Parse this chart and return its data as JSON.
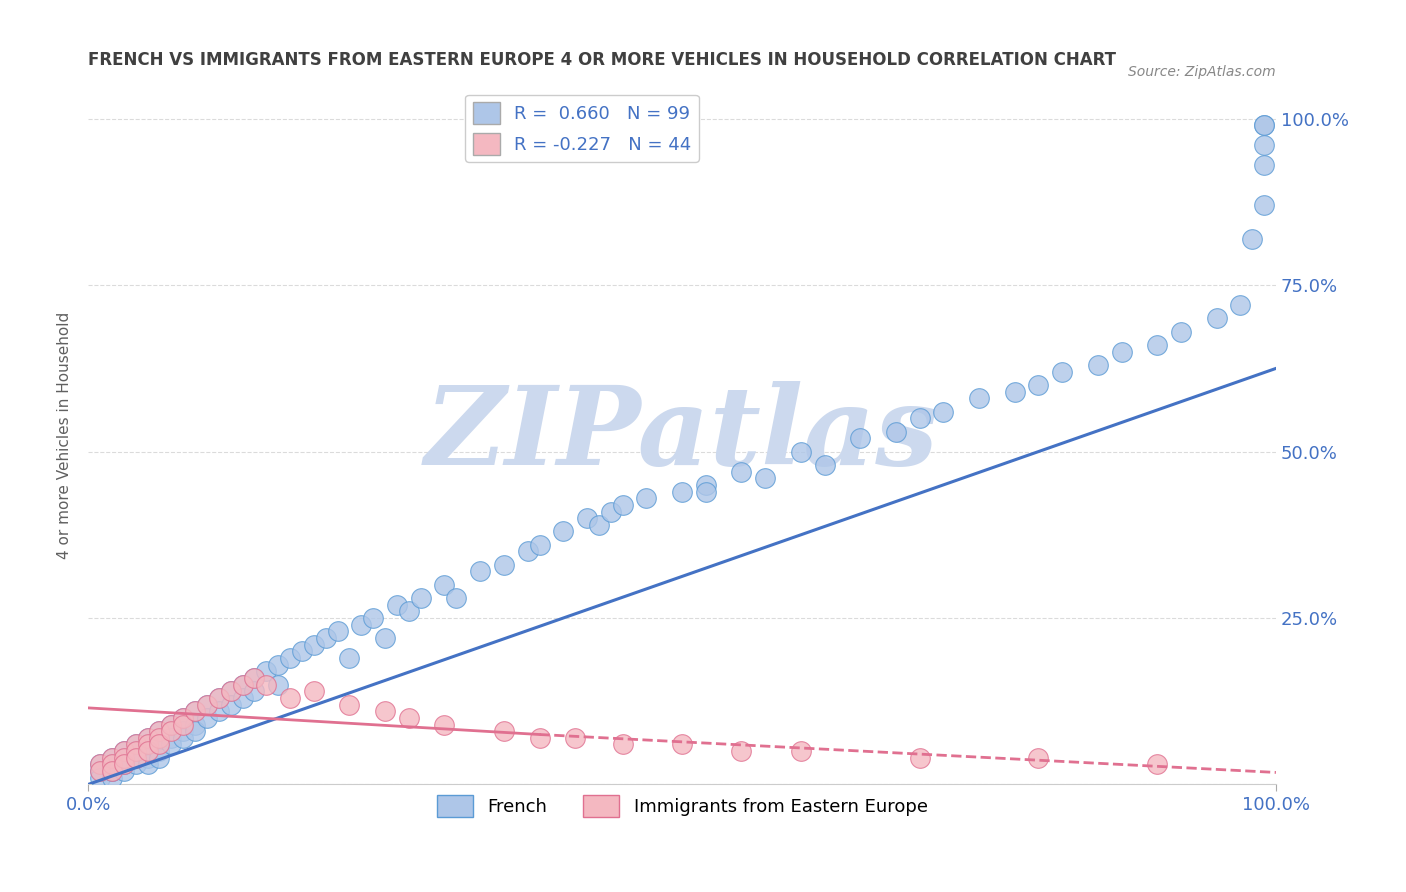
{
  "title": "FRENCH VS IMMIGRANTS FROM EASTERN EUROPE 4 OR MORE VEHICLES IN HOUSEHOLD CORRELATION CHART",
  "source_text": "Source: ZipAtlas.com",
  "ylabel": "4 or more Vehicles in Household",
  "xlim": [
    0.0,
    1.0
  ],
  "ylim": [
    0.0,
    1.05
  ],
  "legend_entries": [
    {
      "label": "R =  0.660   N = 99",
      "color": "#aec6e8"
    },
    {
      "label": "R = -0.227   N = 44",
      "color": "#f4b8c1"
    }
  ],
  "watermark": "ZIPatlas",
  "watermark_color": "#ccd9ee",
  "background_color": "#ffffff",
  "grid_color": "#cccccc",
  "blue_scatter_color": "#aec6e8",
  "blue_scatter_edge": "#5b9bd5",
  "pink_scatter_color": "#f4b8c1",
  "pink_scatter_edge": "#e07090",
  "blue_line_color": "#4472c4",
  "pink_line_color": "#e07090",
  "title_color": "#404040",
  "axis_label_color": "#606060",
  "tick_label_color": "#4472c4",
  "blue_x": [
    0.01,
    0.01,
    0.01,
    0.02,
    0.02,
    0.02,
    0.02,
    0.02,
    0.03,
    0.03,
    0.03,
    0.03,
    0.03,
    0.04,
    0.04,
    0.04,
    0.04,
    0.05,
    0.05,
    0.05,
    0.05,
    0.05,
    0.06,
    0.06,
    0.06,
    0.06,
    0.07,
    0.07,
    0.07,
    0.08,
    0.08,
    0.08,
    0.09,
    0.09,
    0.09,
    0.1,
    0.1,
    0.11,
    0.11,
    0.12,
    0.12,
    0.13,
    0.13,
    0.14,
    0.14,
    0.15,
    0.16,
    0.16,
    0.17,
    0.18,
    0.19,
    0.2,
    0.21,
    0.22,
    0.23,
    0.24,
    0.25,
    0.26,
    0.27,
    0.28,
    0.3,
    0.31,
    0.33,
    0.35,
    0.37,
    0.38,
    0.4,
    0.42,
    0.43,
    0.44,
    0.45,
    0.47,
    0.5,
    0.52,
    0.55,
    0.57,
    0.6,
    0.62,
    0.65,
    0.68,
    0.52,
    0.7,
    0.72,
    0.75,
    0.78,
    0.8,
    0.82,
    0.85,
    0.87,
    0.9,
    0.92,
    0.95,
    0.97,
    0.98,
    0.99,
    0.99,
    0.99,
    0.99,
    0.99
  ],
  "blue_y": [
    0.02,
    0.03,
    0.01,
    0.04,
    0.02,
    0.03,
    0.01,
    0.02,
    0.05,
    0.03,
    0.04,
    0.02,
    0.03,
    0.06,
    0.04,
    0.05,
    0.03,
    0.07,
    0.05,
    0.04,
    0.06,
    0.03,
    0.08,
    0.06,
    0.05,
    0.04,
    0.09,
    0.07,
    0.06,
    0.1,
    0.08,
    0.07,
    0.11,
    0.09,
    0.08,
    0.12,
    0.1,
    0.13,
    0.11,
    0.14,
    0.12,
    0.15,
    0.13,
    0.16,
    0.14,
    0.17,
    0.18,
    0.15,
    0.19,
    0.2,
    0.21,
    0.22,
    0.23,
    0.19,
    0.24,
    0.25,
    0.22,
    0.27,
    0.26,
    0.28,
    0.3,
    0.28,
    0.32,
    0.33,
    0.35,
    0.36,
    0.38,
    0.4,
    0.39,
    0.41,
    0.42,
    0.43,
    0.44,
    0.45,
    0.47,
    0.46,
    0.5,
    0.48,
    0.52,
    0.53,
    0.44,
    0.55,
    0.56,
    0.58,
    0.59,
    0.6,
    0.62,
    0.63,
    0.65,
    0.66,
    0.68,
    0.7,
    0.72,
    0.82,
    0.87,
    0.99,
    0.99,
    0.96,
    0.93
  ],
  "pink_x": [
    0.01,
    0.01,
    0.02,
    0.02,
    0.02,
    0.03,
    0.03,
    0.03,
    0.04,
    0.04,
    0.04,
    0.05,
    0.05,
    0.05,
    0.06,
    0.06,
    0.06,
    0.07,
    0.07,
    0.08,
    0.08,
    0.09,
    0.1,
    0.11,
    0.12,
    0.13,
    0.14,
    0.15,
    0.17,
    0.19,
    0.22,
    0.25,
    0.27,
    0.3,
    0.35,
    0.38,
    0.41,
    0.45,
    0.5,
    0.55,
    0.6,
    0.7,
    0.8,
    0.9
  ],
  "pink_y": [
    0.03,
    0.02,
    0.04,
    0.03,
    0.02,
    0.05,
    0.04,
    0.03,
    0.06,
    0.05,
    0.04,
    0.07,
    0.06,
    0.05,
    0.08,
    0.07,
    0.06,
    0.09,
    0.08,
    0.1,
    0.09,
    0.11,
    0.12,
    0.13,
    0.14,
    0.15,
    0.16,
    0.15,
    0.13,
    0.14,
    0.12,
    0.11,
    0.1,
    0.09,
    0.08,
    0.07,
    0.07,
    0.06,
    0.06,
    0.05,
    0.05,
    0.04,
    0.04,
    0.03
  ],
  "blue_trend": {
    "x_start": 0.0,
    "x_end": 1.0,
    "y_start": 0.0,
    "y_end": 0.625
  },
  "pink_trend_solid": {
    "x_start": 0.0,
    "x_end": 0.38,
    "y_start": 0.115,
    "y_end": 0.075
  },
  "pink_trend_dashed": {
    "x_start": 0.38,
    "x_end": 1.0,
    "y_start": 0.075,
    "y_end": 0.018
  }
}
